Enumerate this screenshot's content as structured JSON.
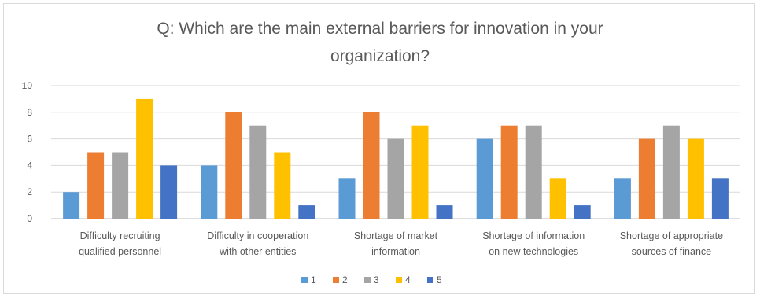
{
  "chart_data": {
    "type": "bar",
    "title_lines": [
      "Q: Which are the main external barriers for innovation in your",
      "organization?"
    ],
    "categories": [
      [
        "Difficulty recruiting",
        "qualified personnel"
      ],
      [
        "Difficulty in cooperation",
        "with other entities"
      ],
      [
        "Shortage of market",
        "information"
      ],
      [
        "Shortage of information",
        "on new technologies"
      ],
      [
        "Shortage of appropriate",
        "sources of finance"
      ]
    ],
    "series": [
      {
        "name": "1",
        "color": "#5b9bd5",
        "values": [
          2,
          4,
          3,
          6,
          3
        ]
      },
      {
        "name": "2",
        "color": "#ed7d31",
        "values": [
          5,
          8,
          8,
          7,
          6
        ]
      },
      {
        "name": "3",
        "color": "#a5a5a5",
        "values": [
          5,
          7,
          6,
          7,
          7
        ]
      },
      {
        "name": "4",
        "color": "#ffc000",
        "values": [
          9,
          5,
          7,
          3,
          6
        ]
      },
      {
        "name": "5",
        "color": "#4472c4",
        "values": [
          4,
          1,
          1,
          1,
          3
        ]
      }
    ],
    "ylim": [
      0,
      10
    ],
    "yticks": [
      "0",
      "2",
      "4",
      "6",
      "8",
      "10"
    ],
    "grid": true,
    "legend_position": "bottom"
  }
}
